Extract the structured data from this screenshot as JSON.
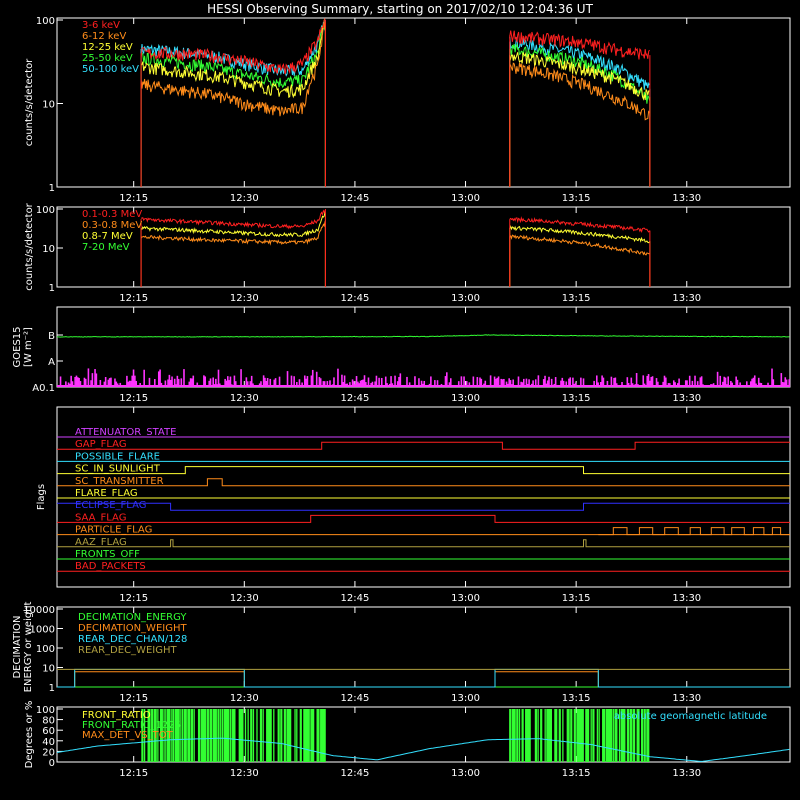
{
  "title": "HESSI Observing Summary, starting on 2017/02/10 12:04:36 UT",
  "time_axis": {
    "start": "12:04:36",
    "end": "13:44:00",
    "ticks": [
      {
        "t": "12:15",
        "label": "12:15"
      },
      {
        "t": "12:30",
        "label": "12:30"
      },
      {
        "t": "12:45",
        "label": "12:45"
      },
      {
        "t": "13:00",
        "label": "13:00"
      },
      {
        "t": "13:15",
        "label": "13:15"
      },
      {
        "t": "13:30",
        "label": "13:30"
      }
    ]
  },
  "chart_data": [
    {
      "type": "line",
      "ylabel": "counts/s/detector",
      "yscale": "log",
      "ylim": [
        1,
        100
      ],
      "yticks": [
        {
          "v": 1,
          "label": "1"
        },
        {
          "v": 10,
          "label": "10"
        },
        {
          "v": 100,
          "label": "100"
        }
      ],
      "legend_position": "top-left",
      "series": [
        {
          "name": "3-6 keV",
          "color": "#ff2020",
          "segments": [
            {
              "x": [
                "12:16",
                "12:20",
                "12:25",
                "12:30",
                "12:35",
                "12:38",
                "12:40",
                "12:41"
              ],
              "y": [
                40,
                40,
                38,
                32,
                25,
                30,
                55,
                100
              ]
            },
            {
              "x": [
                "13:06",
                "13:10",
                "13:15",
                "13:20",
                "13:25"
              ],
              "y": [
                65,
                60,
                55,
                45,
                38
              ]
            }
          ]
        },
        {
          "name": "6-12 keV",
          "color": "#ff8c1a",
          "segments": [
            {
              "x": [
                "12:16",
                "12:20",
                "12:25",
                "12:30",
                "12:35",
                "12:38",
                "12:40",
                "12:41"
              ],
              "y": [
                17,
                15,
                13,
                10,
                8,
                9,
                28,
                90
              ]
            },
            {
              "x": [
                "13:06",
                "13:10",
                "13:15",
                "13:20",
                "13:25"
              ],
              "y": [
                28,
                24,
                18,
                12,
                7
              ]
            }
          ]
        },
        {
          "name": "12-25 keV",
          "color": "#ffff33",
          "segments": [
            {
              "x": [
                "12:16",
                "12:20",
                "12:25",
                "12:30",
                "12:35",
                "12:38",
                "12:40",
                "12:41"
              ],
              "y": [
                28,
                25,
                22,
                18,
                14,
                15,
                35,
                95
              ]
            },
            {
              "x": [
                "13:06",
                "13:10",
                "13:15",
                "13:20",
                "13:25"
              ],
              "y": [
                38,
                33,
                27,
                20,
                12
              ]
            }
          ]
        },
        {
          "name": "25-50 keV",
          "color": "#33ff33",
          "segments": [
            {
              "x": [
                "12:16",
                "12:20",
                "12:25",
                "12:30",
                "12:35",
                "12:38",
                "12:40",
                "12:41"
              ],
              "y": [
                35,
                32,
                28,
                22,
                18,
                19,
                40,
                95
              ]
            },
            {
              "x": [
                "13:06",
                "13:10",
                "13:15",
                "13:20",
                "13:25"
              ],
              "y": [
                45,
                40,
                32,
                22,
                10
              ]
            }
          ]
        },
        {
          "name": "50-100 keV",
          "color": "#33e0ff",
          "segments": [
            {
              "x": [
                "12:16",
                "12:20",
                "12:25",
                "12:30",
                "12:35",
                "12:38",
                "12:40",
                "12:41"
              ],
              "y": [
                45,
                42,
                38,
                30,
                24,
                25,
                50,
                100
              ]
            },
            {
              "x": [
                "13:06",
                "13:10",
                "13:15",
                "13:20",
                "13:25"
              ],
              "y": [
                55,
                48,
                40,
                28,
                15
              ]
            }
          ]
        }
      ]
    },
    {
      "type": "line",
      "ylabel": "counts/s/detector",
      "yscale": "log",
      "ylim": [
        1,
        100
      ],
      "yticks": [
        {
          "v": 1,
          "label": "1"
        },
        {
          "v": 10,
          "label": "10"
        },
        {
          "v": 100,
          "label": "100"
        }
      ],
      "legend_position": "top-left",
      "series": [
        {
          "name": "0.1-0.3 MeV",
          "color": "#ff2020",
          "segments": [
            {
              "x": [
                "12:16",
                "12:20",
                "12:25",
                "12:30",
                "12:35",
                "12:38",
                "12:40",
                "12:41"
              ],
              "y": [
                55,
                50,
                45,
                40,
                36,
                36,
                50,
                100
              ]
            },
            {
              "x": [
                "13:06",
                "13:10",
                "13:15",
                "13:20",
                "13:25"
              ],
              "y": [
                55,
                50,
                42,
                35,
                28
              ]
            }
          ]
        },
        {
          "name": "0.3-0.8 MeV",
          "color": "#ff8c1a",
          "segments": [
            {
              "x": [
                "12:16",
                "12:20",
                "12:25",
                "12:30",
                "12:35",
                "12:38",
                "12:40",
                "12:41"
              ],
              "y": [
                19,
                18,
                16,
                15,
                14,
                14,
                18,
                45
              ]
            },
            {
              "x": [
                "13:06",
                "13:10",
                "13:15",
                "13:20",
                "13:25"
              ],
              "y": [
                20,
                17,
                14,
                10,
                7
              ]
            }
          ]
        },
        {
          "name": "0.8-7 MeV",
          "color": "#ffff33",
          "segments": [
            {
              "x": [
                "12:16",
                "12:20",
                "12:25",
                "12:30",
                "12:35",
                "12:38",
                "12:40",
                "12:41"
              ],
              "y": [
                32,
                30,
                27,
                24,
                22,
                22,
                30,
                80
              ]
            },
            {
              "x": [
                "13:06",
                "13:10",
                "13:15",
                "13:20",
                "13:25"
              ],
              "y": [
                33,
                30,
                25,
                20,
                15
              ]
            }
          ]
        },
        {
          "name": "7-20 MeV",
          "color": "#33ff33",
          "segments": []
        }
      ]
    },
    {
      "type": "line",
      "ylabel": "GOES15",
      "ylabel2": "[W m⁻²]",
      "yscale": "level",
      "ylim": [
        0,
        3
      ],
      "yticks": [
        {
          "v": 0,
          "label": "A0.1"
        },
        {
          "v": 1,
          "label": "A"
        },
        {
          "v": 2,
          "label": "B"
        }
      ],
      "series": [
        {
          "name": "",
          "color": "#33ff33",
          "segments": [
            {
              "x": [
                "12:04:36",
                "12:30",
                "12:55",
                "13:03",
                "13:20",
                "13:44"
              ],
              "y": [
                1.93,
                1.93,
                1.94,
                2.0,
                1.96,
                1.93
              ]
            }
          ]
        },
        {
          "name": "",
          "color": "#ff33ff",
          "style": "spikes",
          "spike_range": [
            0.1,
            0.45
          ]
        }
      ]
    },
    {
      "type": "line",
      "ylabel": "Flags",
      "ylim": [
        0,
        16
      ],
      "series": [
        {
          "name": "ATTENUATOR_STATE",
          "color": "#d040ff",
          "segments": [
            {
              "x": [
                "12:04:36",
                "13:44"
              ],
              "y": [
                0,
                0
              ]
            }
          ]
        },
        {
          "name": "GAP_FLAG",
          "color": "#ff2020",
          "segments": [
            {
              "x": [
                "12:04:36",
                "12:40:30",
                "12:40:30",
                "13:05",
                "13:05",
                "13:23",
                "13:23",
                "13:44"
              ],
              "y": [
                0,
                0,
                1,
                1,
                0,
                0,
                1,
                1
              ]
            }
          ]
        },
        {
          "name": "POSSIBLE_FLARE",
          "color": "#33e0ff",
          "segments": [
            {
              "x": [
                "12:04:36",
                "13:44"
              ],
              "y": [
                0,
                0
              ]
            }
          ]
        },
        {
          "name": "SC_IN_SUNLIGHT",
          "color": "#ffff33",
          "segments": [
            {
              "x": [
                "12:04:36",
                "12:22",
                "12:22",
                "13:16",
                "13:16",
                "13:44"
              ],
              "y": [
                0,
                0,
                1,
                1,
                0,
                0
              ]
            }
          ]
        },
        {
          "name": "SC_TRANSMITTER",
          "color": "#ff8c1a",
          "segments": [
            {
              "x": [
                "12:04:36",
                "12:25",
                "12:25",
                "12:27",
                "12:27",
                "13:44"
              ],
              "y": [
                0,
                0,
                1,
                1,
                0,
                0
              ]
            }
          ]
        },
        {
          "name": "FLARE_FLAG",
          "color": "#ffff33",
          "segments": [
            {
              "x": [
                "12:04:36",
                "13:44"
              ],
              "y": [
                0,
                0
              ]
            }
          ]
        },
        {
          "name": "ECLIPSE_FLAG",
          "color": "#3030ff",
          "segments": [
            {
              "x": [
                "12:04:36",
                "12:20",
                "12:20",
                "13:16",
                "13:16",
                "13:44"
              ],
              "y": [
                1,
                1,
                0,
                0,
                1,
                1
              ]
            }
          ]
        },
        {
          "name": "SAA_FLAG",
          "color": "#ff2020",
          "segments": [
            {
              "x": [
                "12:04:36",
                "12:39",
                "12:39",
                "13:04",
                "13:04",
                "13:44"
              ],
              "y": [
                0,
                0,
                1,
                1,
                0,
                0
              ]
            }
          ]
        },
        {
          "name": "PARTICLE_FLAG",
          "color": "#ff8c1a",
          "segments": [
            {
              "x": [
                "12:04:36",
                "13:18",
                "13:18",
                "13:44"
              ],
              "y": [
                0,
                0,
                0,
                0
              ]
            }
          ],
          "toggle_period_min": 1.5,
          "toggle_from": "13:18"
        },
        {
          "name": "AAZ_FLAG",
          "color": "#b0a040",
          "segments": [
            {
              "x": [
                "12:04:36",
                "12:20",
                "12:20",
                "12:20:20",
                "12:20:20",
                "13:16",
                "13:16",
                "13:16:20",
                "13:16:20",
                "13:44"
              ],
              "y": [
                0,
                0,
                1,
                1,
                0,
                0,
                1,
                1,
                0,
                0
              ]
            }
          ]
        },
        {
          "name": "FRONTS_OFF",
          "color": "#33ff33",
          "segments": [
            {
              "x": [
                "12:04:36",
                "13:44"
              ],
              "y": [
                0,
                0
              ]
            }
          ]
        },
        {
          "name": "BAD_PACKETS",
          "color": "#ff2020",
          "segments": [
            {
              "x": [
                "12:04:36",
                "13:44"
              ],
              "y": [
                0,
                0
              ]
            }
          ]
        }
      ]
    },
    {
      "type": "line",
      "ylabel": "DECIMATION",
      "ylabel2": "ENERGY or weight",
      "yscale": "log",
      "ylim": [
        1,
        10000
      ],
      "yticks": [
        {
          "v": 1,
          "label": "1"
        },
        {
          "v": 10,
          "label": "10"
        },
        {
          "v": 100,
          "label": "100"
        },
        {
          "v": 1000,
          "label": "1000"
        },
        {
          "v": 10000,
          "label": "10000"
        }
      ],
      "series": [
        {
          "name": "DECIMATION_ENERGY",
          "color": "#33ff33",
          "segments": [
            {
              "x": [
                "12:04:36",
                "13:44"
              ],
              "y": [
                1,
                1
              ]
            }
          ]
        },
        {
          "name": "DECIMATION_WEIGHT",
          "color": "#ff8c1a",
          "segments": [
            {
              "x": [
                "12:04:36",
                "12:07",
                "12:07",
                "12:30",
                "12:30",
                "13:04",
                "13:04",
                "13:18",
                "13:18",
                "13:44"
              ],
              "y": [
                1,
                1,
                6,
                6,
                1,
                1,
                6,
                6,
                1,
                1
              ]
            }
          ]
        },
        {
          "name": "REAR_DEC_CHAN/128",
          "color": "#33e0ff",
          "segments": [
            {
              "x": [
                "12:04:36",
                "12:07",
                "12:07",
                "12:30",
                "12:30",
                "13:04",
                "13:04",
                "13:18",
                "13:18",
                "13:44"
              ],
              "y": [
                1,
                1,
                8,
                8,
                1,
                1,
                8,
                8,
                1,
                1
              ]
            }
          ]
        },
        {
          "name": "REAR_DEC_WEIGHT",
          "color": "#b0a040",
          "segments": [
            {
              "x": [
                "12:04:36",
                "13:44"
              ],
              "y": [
                8,
                8
              ]
            }
          ]
        }
      ]
    },
    {
      "type": "line",
      "ylabel": "Degrees or %",
      "ylim": [
        0,
        100
      ],
      "yticks": [
        {
          "v": 0,
          "label": "0"
        },
        {
          "v": 20,
          "label": "20"
        },
        {
          "v": 40,
          "label": "40"
        },
        {
          "v": 60,
          "label": "60"
        },
        {
          "v": 80,
          "label": "80"
        },
        {
          "v": 100,
          "label": "100"
        }
      ],
      "annotation": "absolute geomagnetic latitude",
      "series": [
        {
          "name": "FRONT_RATIO",
          "color": "#ffff33",
          "segments": []
        },
        {
          "name": "FRONT_RATIO_1225",
          "color": "#33ff33",
          "style": "bars",
          "ranges": [
            [
              "12:16",
              "12:41"
            ],
            [
              "13:06",
              "13:25"
            ]
          ]
        },
        {
          "name": "MAX_DET_VS_TOT",
          "color": "#ff8c1a",
          "segments": []
        },
        {
          "name": "absolute geomagnetic latitude",
          "color": "#33e0ff",
          "segments": [
            {
              "x": [
                "12:04:36",
                "12:10",
                "12:20",
                "12:27",
                "12:35",
                "12:42",
                "12:48",
                "12:55",
                "13:03",
                "13:10",
                "13:17",
                "13:25",
                "13:32",
                "13:38",
                "13:44"
              ],
              "y": [
                18,
                30,
                42,
                45,
                35,
                12,
                4,
                25,
                42,
                44,
                33,
                10,
                1,
                12,
                24
              ]
            }
          ]
        }
      ]
    }
  ]
}
